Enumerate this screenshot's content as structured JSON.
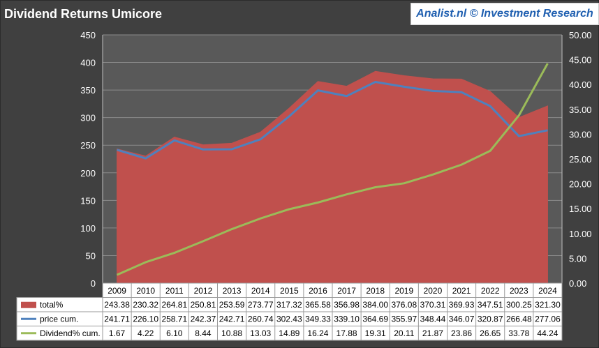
{
  "header": {
    "title": "Dividend Returns Umicore",
    "brand": "Analist.nl © Investment Research"
  },
  "colors": {
    "background": "#404040",
    "plot_area": "#595959",
    "total_area": "#c0504d",
    "price_line": "#4f81bd",
    "dividend_line": "#9bbb59",
    "table_bg": "#ffffff"
  },
  "chart_data": {
    "type": "area",
    "title": "Dividend Returns Umicore",
    "x": [
      "2009",
      "2010",
      "2011",
      "2012",
      "2013",
      "2014",
      "2015",
      "2016",
      "2017",
      "2018",
      "2019",
      "2020",
      "2021",
      "2022",
      "2023",
      "2024"
    ],
    "ylim": [
      0,
      450
    ],
    "y2lim": [
      0,
      50
    ],
    "y_ticks": [
      "0",
      "50",
      "100",
      "150",
      "200",
      "250",
      "300",
      "350",
      "400",
      "450"
    ],
    "y2_ticks": [
      "0.00",
      "5.00",
      "10.00",
      "15.00",
      "20.00",
      "25.00",
      "30.00",
      "35.00",
      "40.00",
      "45.00",
      "50.00"
    ],
    "grid": true,
    "legend_placement": "bottom data table",
    "series": [
      {
        "name": "total%",
        "kind": "area",
        "axis": "left",
        "values": [
          243.38,
          230.32,
          264.81,
          250.81,
          253.59,
          273.77,
          317.32,
          365.58,
          356.98,
          384.0,
          376.08,
          370.31,
          369.93,
          347.51,
          300.25,
          321.3
        ],
        "labels": [
          "243.38",
          "230.32",
          "264.81",
          "250.81",
          "253.59",
          "273.77",
          "317.32",
          "365.58",
          "356.98",
          "384.00",
          "376.08",
          "370.31",
          "369.93",
          "347.51",
          "300.25",
          "321.30"
        ]
      },
      {
        "name": "price cum.",
        "kind": "line",
        "axis": "left",
        "values": [
          241.71,
          226.1,
          258.71,
          242.37,
          242.71,
          260.74,
          302.43,
          349.33,
          339.1,
          364.69,
          355.97,
          348.44,
          346.07,
          320.87,
          266.48,
          277.06
        ],
        "labels": [
          "241.71",
          "226.10",
          "258.71",
          "242.37",
          "242.71",
          "260.74",
          "302.43",
          "349.33",
          "339.10",
          "364.69",
          "355.97",
          "348.44",
          "346.07",
          "320.87",
          "266.48",
          "277.06"
        ]
      },
      {
        "name": "Dividend% cum.",
        "kind": "line",
        "axis": "right",
        "values": [
          1.67,
          4.22,
          6.1,
          8.44,
          10.88,
          13.03,
          14.89,
          16.24,
          17.88,
          19.31,
          20.11,
          21.87,
          23.86,
          26.65,
          33.78,
          44.24
        ],
        "labels": [
          "1.67",
          "4.22",
          "6.10",
          "8.44",
          "10.88",
          "13.03",
          "14.89",
          "16.24",
          "17.88",
          "19.31",
          "20.11",
          "21.87",
          "23.86",
          "26.65",
          "33.78",
          "44.24"
        ]
      }
    ]
  }
}
